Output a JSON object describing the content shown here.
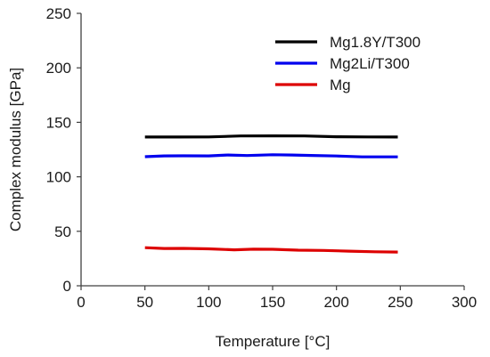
{
  "chart_data": {
    "type": "line",
    "xlabel": "Temperature [°C]",
    "ylabel": "Complex modulus [GPa]",
    "xlim": [
      0,
      300
    ],
    "ylim": [
      0,
      250
    ],
    "xticks": [
      0,
      50,
      100,
      150,
      200,
      250,
      300
    ],
    "yticks": [
      0,
      50,
      100,
      150,
      200,
      250
    ],
    "grid": false,
    "legend_position": "top-right",
    "series": [
      {
        "name": "Mg1.8Y/T300",
        "color": "#000000",
        "x": [
          50,
          75,
          100,
          125,
          150,
          175,
          200,
          225,
          248
        ],
        "y": [
          136.5,
          136.5,
          136.6,
          137.5,
          137.6,
          137.5,
          136.8,
          136.6,
          136.5
        ]
      },
      {
        "name": "Mg2Li/T300",
        "color": "#0000ee",
        "x": [
          50,
          65,
          80,
          100,
          115,
          130,
          150,
          165,
          180,
          200,
          220,
          248
        ],
        "y": [
          118.5,
          119.2,
          119.3,
          119.2,
          120.0,
          119.5,
          120.3,
          120.0,
          119.6,
          119.1,
          118.3,
          118.3
        ]
      },
      {
        "name": "Mg",
        "color": "#dd0000",
        "x": [
          50,
          65,
          80,
          100,
          120,
          135,
          150,
          170,
          190,
          210,
          230,
          248
        ],
        "y": [
          35.0,
          34.2,
          34.3,
          33.9,
          33.0,
          33.6,
          33.5,
          32.7,
          32.4,
          31.8,
          31.2,
          31.0
        ]
      }
    ]
  }
}
